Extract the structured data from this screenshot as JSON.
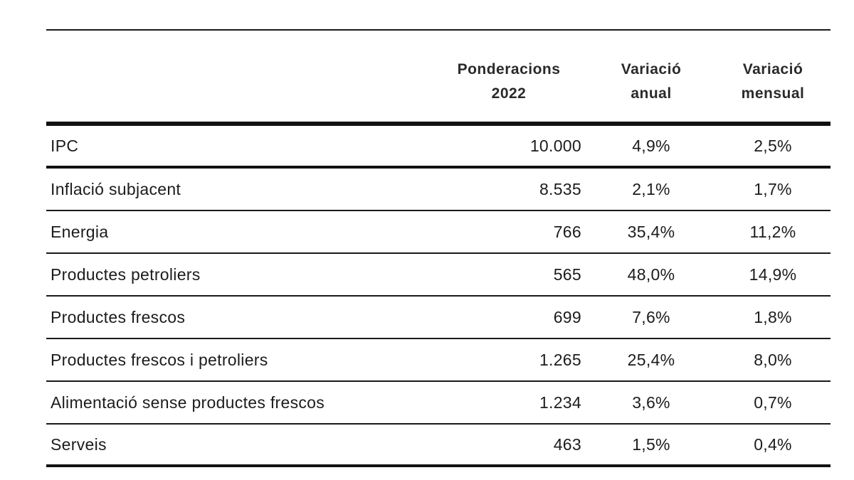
{
  "table": {
    "headers": {
      "weights_line1": "Ponderacions",
      "weights_line2": "2022",
      "annual_line1": "Variació",
      "annual_line2": "anual",
      "monthly_line1": "Variació",
      "monthly_line2": "mensual"
    },
    "rows": [
      {
        "label": "IPC",
        "weight": "10.000",
        "annual": "4,9%",
        "monthly": "2,5%"
      },
      {
        "label": "Inflació subjacent",
        "weight": "8.535",
        "annual": "2,1%",
        "monthly": "1,7%"
      },
      {
        "label": "Energia",
        "weight": "766",
        "annual": "35,4%",
        "monthly": "11,2%"
      },
      {
        "label": "Productes petroliers",
        "weight": "565",
        "annual": "48,0%",
        "monthly": "14,9%"
      },
      {
        "label": "Productes frescos",
        "weight": "699",
        "annual": "7,6%",
        "monthly": "1,8%"
      },
      {
        "label": "Productes frescos i petroliers",
        "weight": "1.265",
        "annual": "25,4%",
        "monthly": "8,0%"
      },
      {
        "label": "Alimentació sense productes frescos",
        "weight": "1.234",
        "annual": "3,6%",
        "monthly": "0,7%"
      },
      {
        "label": "Serveis",
        "weight": "463",
        "annual": "1,5%",
        "monthly": "0,4%"
      }
    ]
  }
}
